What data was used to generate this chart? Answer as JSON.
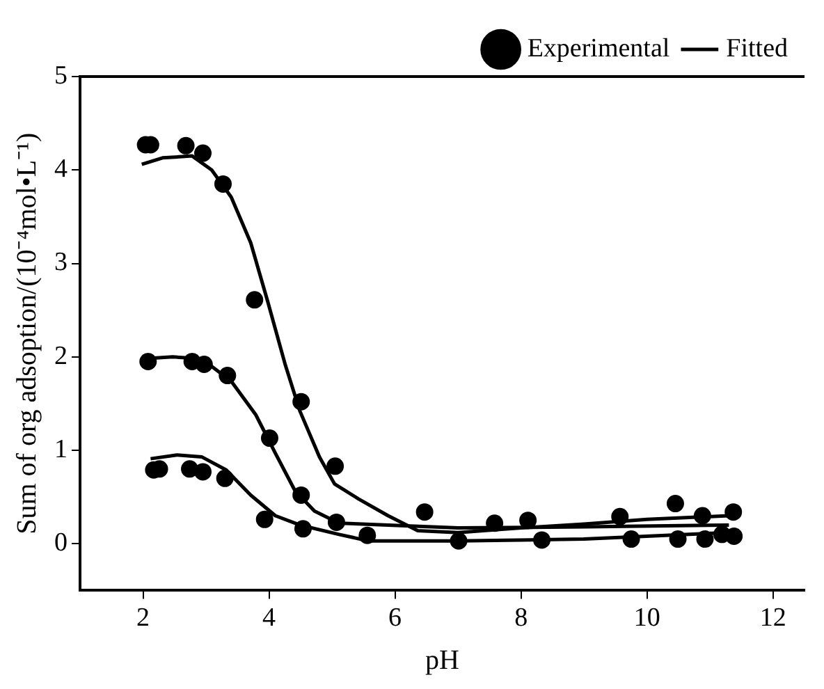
{
  "chart_data": {
    "type": "scatter",
    "xlabel": "pH",
    "ylabel": "Sum of org adsoption/(10⁻⁴mol•L⁻¹)",
    "xlim": [
      1,
      12.5
    ],
    "xticks": [
      2,
      4,
      6,
      8,
      10,
      12
    ],
    "ylim": [
      -0.5,
      5
    ],
    "yticks": [
      0,
      1,
      2,
      3,
      4,
      5
    ],
    "grid": false,
    "legend": "top right",
    "series": [
      {
        "name": "Experimental",
        "type": "scatter",
        "marker": "circle",
        "color": "#000000",
        "x": [
          2.04,
          2.12,
          2.68,
          2.95,
          3.27,
          3.77,
          4.51,
          5.05,
          6.47,
          7.58,
          8.11,
          9.57,
          10.45,
          10.88,
          11.37,
          2.08,
          2.78,
          2.97,
          3.34,
          4.01,
          4.51,
          5.07,
          5.56,
          7.01,
          8.33,
          9.75,
          10.49,
          10.92,
          11.19,
          11.38,
          2.17,
          2.26,
          2.74,
          2.95,
          3.3,
          3.93,
          4.54
        ],
        "values": [
          4.27,
          4.27,
          4.26,
          4.18,
          3.85,
          2.61,
          1.52,
          0.83,
          0.34,
          0.22,
          0.25,
          0.29,
          0.43,
          0.3,
          0.34,
          1.95,
          1.95,
          1.92,
          1.8,
          1.13,
          0.52,
          0.23,
          0.09,
          0.03,
          0.04,
          0.05,
          0.05,
          0.05,
          0.1,
          0.08,
          0.79,
          0.8,
          0.8,
          0.77,
          0.7,
          0.26,
          0.16
        ]
      },
      {
        "name": "Fitted",
        "type": "line",
        "marker": "none",
        "color": "#000000",
        "x": [
          1.98,
          2.31,
          2.78,
          3.09,
          3.4,
          3.71,
          3.98,
          4.26,
          4.49,
          4.8,
          5.04,
          5.42,
          5.89,
          6.36,
          7,
          8,
          9,
          10,
          11.3
        ],
        "values": [
          4.06,
          4.13,
          4.15,
          4.0,
          3.71,
          3.22,
          2.59,
          1.91,
          1.42,
          0.93,
          0.64,
          0.48,
          0.3,
          0.14,
          0.12,
          0.17,
          0.21,
          0.26,
          0.3
        ]
      },
      {
        "type": "line",
        "marker": "none",
        "color": "#000000",
        "x": [
          2.0,
          2.47,
          2.93,
          3.4,
          3.79,
          4.1,
          4.41,
          4.72,
          5.11,
          5.89,
          7,
          9,
          11.3
        ],
        "values": [
          1.98,
          2.0,
          1.98,
          1.74,
          1.38,
          0.97,
          0.57,
          0.35,
          0.22,
          0.2,
          0.17,
          0.18,
          0.2
        ]
      },
      {
        "type": "line",
        "marker": "none",
        "color": "#000000",
        "x": [
          2.12,
          2.54,
          2.93,
          3.32,
          3.71,
          4.1,
          4.49,
          5.11,
          5.58,
          7,
          9,
          11.3
        ],
        "values": [
          0.91,
          0.95,
          0.93,
          0.79,
          0.52,
          0.3,
          0.2,
          0.1,
          0.03,
          0.03,
          0.05,
          0.12
        ]
      }
    ]
  }
}
